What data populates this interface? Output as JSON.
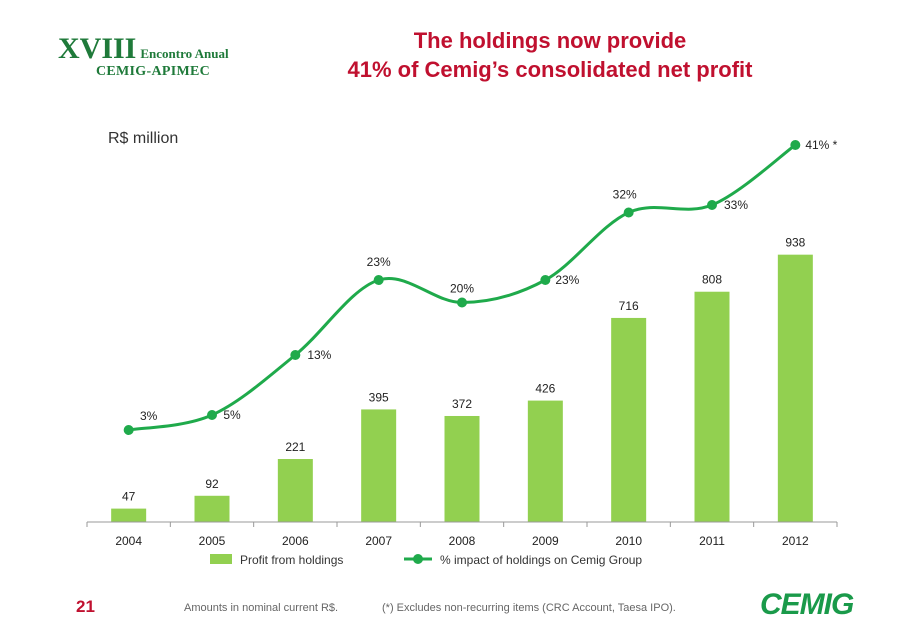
{
  "header": {
    "logo_roman": "XVIII",
    "logo_event": "Encontro Anual",
    "logo_org": "CEMIG-APIMEC",
    "title_line1": "The holdings now provide",
    "title_line2": "41% of Cemig’s consolidated net profit"
  },
  "footer": {
    "page_number": "21",
    "note_amounts": "Amounts in nominal current R$.",
    "note_excludes": "(*) Excludes non-recurring items (CRC Account, Taesa IPO).",
    "brand": "CEMIG"
  },
  "colors": {
    "bar": "#92d050",
    "line": "#1faa4b",
    "title": "#c0102f"
  },
  "chart_data": {
    "type": "bar",
    "unit_label": "R$ million",
    "categories": [
      "2004",
      "2005",
      "2006",
      "2007",
      "2008",
      "2009",
      "2010",
      "2011",
      "2012"
    ],
    "series": [
      {
        "name": "Profit from holdings",
        "type": "bar",
        "values": [
          47,
          92,
          221,
          395,
          372,
          426,
          716,
          808,
          938
        ],
        "labels": [
          "47",
          "92",
          "221",
          "395",
          "372",
          "426",
          "716",
          "808",
          "938"
        ]
      },
      {
        "name": "% impact of holdings on Cemig Group",
        "type": "line",
        "values": [
          3,
          5,
          13,
          23,
          20,
          23,
          32,
          33,
          41
        ],
        "labels": [
          "3%",
          "5%",
          "13%",
          "23%",
          "20%",
          "23%",
          "32%",
          "33%",
          "41% *"
        ]
      }
    ],
    "bar_axis_range": [
      0,
      1000
    ],
    "percent_axis_range": [
      -9,
      47
    ],
    "legend_position": "bottom"
  }
}
